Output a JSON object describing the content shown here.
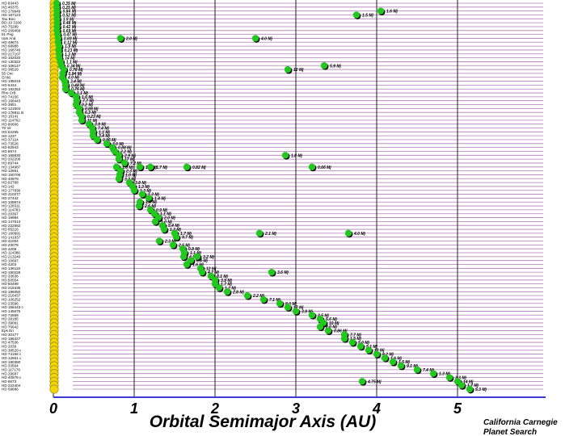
{
  "chart_data": {
    "type": "scatter",
    "xlabel": "Orbital Semimajor Axis  (AU)",
    "xlim": [
      -0.05,
      5.8
    ],
    "x_ticks": [
      0,
      1,
      2,
      3,
      4,
      5
    ],
    "credit": [
      "California Carnegie",
      "Planet Search"
    ],
    "colors": {
      "star": "#f2d40a",
      "star_edge": "#9a8200",
      "planet": "#22c81e",
      "planet_shadow": "#000000",
      "row_line": "#b07ab8",
      "grid": "#222222",
      "axis": "#3a3ad0"
    },
    "stars": [
      "HD 83443",
      "HD 46375",
      "HD 179949",
      "HD 187123",
      "Tau Boo",
      "BD-10 3166",
      "HD 75289",
      "HD 209458",
      "51 Peg",
      "Ups And",
      "HD 49674",
      "HD 68988",
      "HD 168746",
      "HD 217107",
      "HD 162020",
      "HD 130322",
      "HD 108147",
      "HD 38529",
      "55 Cnc",
      "Gl 86",
      "HD 195019",
      "HD 6434",
      "HD 192263",
      "Rho CrB",
      "HD 74156",
      "HD 168443",
      "HD 3651",
      "HD 121504",
      "HD 178911 B",
      "HD 16141",
      "HD 114762",
      "HD 80606",
      "70 Vir",
      "HD 52265",
      "HD 1237",
      "HD 37124",
      "HD 73526",
      "HD 82943",
      "HD 8574",
      "HD 169830",
      "HD 202206",
      "HD 89744",
      "HD 134987",
      "HD 12661",
      "HD 150706",
      "HD 40979",
      "HD 92788",
      "HD 142",
      "HD 177830",
      "HD 210277",
      "HD 27442",
      "HD 108874",
      "HD 128311",
      "HD 114783",
      "HD 20367",
      "HD 19994",
      "HD 147513",
      "HD 222582",
      "HD 65216",
      "HD 160691",
      "HD 141937",
      "HD 41004",
      "HD 23079",
      "HD 4208",
      "HD 114386",
      "HD 213240",
      "HD 10697",
      "HD 4203",
      "HD 136118",
      "HD 190228",
      "HD 33636",
      "HD 50554",
      "HD 50499",
      "HD 216435",
      "HD 196050",
      "HD 216437",
      "HD 106252",
      "HD 23596",
      "HD 168443 c",
      "HD 145675",
      "HD 72659",
      "HD 28185",
      "HD 39091",
      "HD 70642",
      "Eps Eri",
      "HD 30177",
      "HD 186427",
      "HD 47536",
      "HD 2039",
      "HD 38529 c",
      "HD 74156 c",
      "HD 12661 c",
      "HD 190360",
      "HD 33564",
      "HD 117176",
      "HD 29587",
      "HD 40979 c",
      "HD 8673",
      "HD 222404",
      "HD 59686"
    ],
    "inner_planets": [
      {
        "star": "HD 83443",
        "a": 0.04,
        "mass": "0.35 Mj"
      },
      {
        "star": "HD 46375",
        "a": 0.041,
        "mass": "0.25 Mj"
      },
      {
        "star": "HD 179949",
        "a": 0.045,
        "mass": "0.84 Mj"
      },
      {
        "star": "HD 187123",
        "a": 0.042,
        "mass": "0.52 Mj"
      },
      {
        "star": "Tau Boo",
        "a": 0.046,
        "mass": "3.9 Mj"
      },
      {
        "star": "BD-10 3166",
        "a": 0.046,
        "mass": "0.48 Mj"
      },
      {
        "star": "HD 75289",
        "a": 0.046,
        "mass": "0.42 Mj"
      },
      {
        "star": "HD 209458",
        "a": 0.045,
        "mass": "0.69 Mj"
      },
      {
        "star": "51 Peg",
        "a": 0.052,
        "mass": "0.47 Mj"
      },
      {
        "star": "Ups And",
        "a": 0.059,
        "mass": "0.69 Mj"
      },
      {
        "star": "HD 49674",
        "a": 0.058,
        "mass": "0.12 Mj"
      },
      {
        "star": "HD 68988",
        "a": 0.071,
        "mass": "1.9 Mj"
      },
      {
        "star": "HD 168746",
        "a": 0.065,
        "mass": "0.23 Mj"
      },
      {
        "star": "HD 217107",
        "a": 0.07,
        "mass": "1.3 Mj"
      },
      {
        "star": "HD 162020",
        "a": 0.072,
        "mass": "14 Mj"
      },
      {
        "star": "HD 130322",
        "a": 0.088,
        "mass": "1.1 Mj"
      },
      {
        "star": "HD 108147",
        "a": 0.098,
        "mass": "0.34 Mj"
      },
      {
        "star": "HD 38529",
        "a": 0.129,
        "mass": "0.78 Mj"
      },
      {
        "star": "55 Cnc",
        "a": 0.115,
        "mass": "0.84 Mj"
      },
      {
        "star": "Gl 86",
        "a": 0.11,
        "mass": "4.0 Mj"
      },
      {
        "star": "HD 195019",
        "a": 0.14,
        "mass": "3.4 Mj"
      },
      {
        "star": "HD 6434",
        "a": 0.15,
        "mass": "0.48 Mj"
      },
      {
        "star": "HD 192263",
        "a": 0.15,
        "mass": "0.76 Mj"
      },
      {
        "star": "Rho CrB",
        "a": 0.22,
        "mass": "1.1 Mj"
      },
      {
        "star": "HD 74156",
        "a": 0.28,
        "mass": "1.6 Mj"
      },
      {
        "star": "HD 168443",
        "a": 0.29,
        "mass": "7.7 Mj"
      },
      {
        "star": "HD 3651",
        "a": 0.28,
        "mass": "0.2 Mj"
      },
      {
        "star": "HD 121504",
        "a": 0.32,
        "mass": "0.89 Mj"
      },
      {
        "star": "HD 178911 B",
        "a": 0.32,
        "mass": "6.3 Mj"
      },
      {
        "star": "HD 16141",
        "a": 0.35,
        "mass": "0.23 Mj"
      },
      {
        "star": "HD 114762",
        "a": 0.35,
        "mass": "11 Mj"
      },
      {
        "star": "HD 80606",
        "a": 0.44,
        "mass": "3.9 Mj"
      },
      {
        "star": "70 Vir",
        "a": 0.48,
        "mass": "7.4 Mj"
      },
      {
        "star": "HD 52265",
        "a": 0.49,
        "mass": "1.1 Mj"
      },
      {
        "star": "HD 1237",
        "a": 0.49,
        "mass": "3.4 Mj"
      },
      {
        "star": "HD 37124",
        "a": 0.54,
        "mass": "0.86 Mj"
      },
      {
        "star": "HD 73526",
        "a": 0.66,
        "mass": "3.0 Mj"
      },
      {
        "star": "HD 82943",
        "a": 0.73,
        "mass": "0.88 Mj"
      },
      {
        "star": "HD 8574",
        "a": 0.76,
        "mass": "2.2 Mj"
      },
      {
        "star": "HD 169830",
        "a": 0.81,
        "mass": "2.9 Mj"
      },
      {
        "star": "HD 202206",
        "a": 0.81,
        "mass": "17 Mj"
      },
      {
        "star": "HD 89744",
        "a": 0.88,
        "mass": "7.2 Mj"
      },
      {
        "star": "HD 134987",
        "a": 0.78,
        "mass": "1.6 Mj"
      },
      {
        "star": "HD 12661",
        "a": 0.83,
        "mass": "2.3 Mj"
      },
      {
        "star": "HD 150706",
        "a": 0.82,
        "mass": "1.0 Mj"
      },
      {
        "star": "HD 40979",
        "a": 0.81,
        "mass": "3.3 Mj"
      },
      {
        "star": "HD 92788",
        "a": 0.94,
        "mass": "3.8 Mj"
      },
      {
        "star": "HD 142",
        "a": 0.98,
        "mass": "1.3 Mj"
      },
      {
        "star": "HD 177830",
        "a": 1.0,
        "mass": "1.3 Mj"
      },
      {
        "star": "HD 210277",
        "a": 1.1,
        "mass": "1.3 Mj"
      },
      {
        "star": "HD 27442",
        "a": 1.18,
        "mass": "1.4 Mj"
      },
      {
        "star": "HD 108874",
        "a": 1.07,
        "mass": "1.6 Mj"
      },
      {
        "star": "HD 128311",
        "a": 1.06,
        "mass": "2.6 Mj"
      },
      {
        "star": "HD 114783",
        "a": 1.2,
        "mass": "0.9 Mj"
      },
      {
        "star": "HD 20367",
        "a": 1.25,
        "mass": "1.1 Mj"
      },
      {
        "star": "HD 19994",
        "a": 1.3,
        "mass": "2.0 Mj"
      },
      {
        "star": "HD 147513",
        "a": 1.26,
        "mass": "1.0 Mj"
      },
      {
        "star": "HD 222582",
        "a": 1.35,
        "mass": "5.4 Mj"
      },
      {
        "star": "HD 65216",
        "a": 1.37,
        "mass": "1.2 Mj"
      },
      {
        "star": "HD 160691",
        "a": 1.5,
        "mass": "1.7 Mj"
      },
      {
        "star": "HD 141937",
        "a": 1.52,
        "mass": "9.7 Mj"
      },
      {
        "star": "HD 41004",
        "a": 1.31,
        "mass": "2.3 Mj"
      },
      {
        "star": "HD 23079",
        "a": 1.48,
        "mass": "2.5 Mj"
      },
      {
        "star": "HD 4208",
        "a": 1.6,
        "mass": "0.8 Mj"
      },
      {
        "star": "HD 114386",
        "a": 1.62,
        "mass": "1.1 Mj"
      },
      {
        "star": "HD 213240",
        "a": 1.61,
        "mass": "4.5 Mj"
      },
      {
        "star": "HD 10697",
        "a": 1.7,
        "mass": "6.4 Mj"
      },
      {
        "star": "HD 4203",
        "a": 1.65,
        "mass": "1.6 Mj"
      },
      {
        "star": "HD 136118",
        "a": 1.82,
        "mass": "12 Mj"
      },
      {
        "star": "HD 190228",
        "a": 1.84,
        "mass": "4.7 Mj"
      },
      {
        "star": "HD 33636",
        "a": 1.95,
        "mass": "8.1 Mj"
      },
      {
        "star": "HD 50554",
        "a": 2.0,
        "mass": "3.9 Mj"
      },
      {
        "star": "HD 50499",
        "a": 2.0,
        "mass": "1.7 Mj"
      },
      {
        "star": "HD 216435",
        "a": 2.05,
        "mass": "1.2 Mj"
      },
      {
        "star": "HD 196050",
        "a": 2.15,
        "mass": "2.8 Mj"
      },
      {
        "star": "HD 216437",
        "a": 2.4,
        "mass": "2.2 Mj"
      },
      {
        "star": "HD 106252",
        "a": 2.6,
        "mass": "7.1 Mj"
      },
      {
        "star": "HD 23596",
        "a": 2.8,
        "mass": "8.0 Mj"
      },
      {
        "star": "HD 168443 c",
        "a": 2.9,
        "mass": "17 Mj"
      },
      {
        "star": "HD 145675",
        "a": 3.0,
        "mass": "3.9 Mj"
      },
      {
        "star": "HD 72659",
        "a": 3.2,
        "mass": "2.5 Mj"
      },
      {
        "star": "HD 28185",
        "a": 3.3,
        "mass": "5.6 Mj"
      },
      {
        "star": "HD 39091",
        "a": 3.34,
        "mass": "10 Mj"
      },
      {
        "star": "HD 70642",
        "a": 3.3,
        "mass": "2.0 Mj"
      },
      {
        "star": "Eps Eri",
        "a": 3.4,
        "mass": "0.86 Mj"
      },
      {
        "star": "HD 30177",
        "a": 3.6,
        "mass": "7.7 Mj"
      },
      {
        "star": "HD 186427",
        "a": 3.6,
        "mass": "1.5 Mj"
      },
      {
        "star": "HD 47536",
        "a": 3.7,
        "mass": "5.0 Mj"
      },
      {
        "star": "HD 2039",
        "a": 3.8,
        "mass": "5.1 Mj"
      },
      {
        "star": "HD 38529 c",
        "a": 3.9,
        "mass": "12 Mj"
      },
      {
        "star": "HD 74156 c",
        "a": 4.0,
        "mass": "8.2 Mj"
      },
      {
        "star": "HD 12661 c",
        "a": 4.1,
        "mass": "1.6 Mj"
      },
      {
        "star": "HD 190360",
        "a": 4.2,
        "mass": "1.5 Mj"
      },
      {
        "star": "HD 33564",
        "a": 4.3,
        "mass": "9.1 Mj"
      },
      {
        "star": "HD 117176",
        "a": 4.5,
        "mass": "7.4 Mj"
      },
      {
        "star": "HD 29587",
        "a": 4.7,
        "mass": "1.3 Mj"
      },
      {
        "star": "HD 40979 c",
        "a": 4.9,
        "mass": "3.3 Mj"
      },
      {
        "star": "HD 8673",
        "a": 5.0,
        "mass": "14 Mj"
      },
      {
        "star": "HD 222404",
        "a": 5.05,
        "mass": "1.7 Mj"
      },
      {
        "star": "HD 59686",
        "a": 5.15,
        "mass": "5.3 Mj"
      }
    ],
    "outer_planets": [
      {
        "star": "HD 179949",
        "a": 4.05,
        "mass": "1.6 Mj"
      },
      {
        "star": "HD 187123",
        "a": 3.75,
        "mass": "1.5 Mj"
      },
      {
        "star": "HD 108147",
        "a": 3.35,
        "mass": "5.9 Mj"
      },
      {
        "star": "HD 38529",
        "a": 2.9,
        "mass": "12 Mj"
      },
      {
        "star": "Ups And",
        "a": 0.83,
        "mass": "2.0 Mj"
      },
      {
        "star": "Ups And",
        "a": 2.5,
        "mass": "4.0 Mj"
      },
      {
        "star": "HD 134987",
        "a": 1.07,
        "mass": "1.3 Mj"
      },
      {
        "star": "HD 134987",
        "a": 1.2,
        "mass": "1.7 Mj"
      },
      {
        "star": "HD 134987",
        "a": 1.65,
        "mass": "0.82 Mj"
      },
      {
        "star": "HD 134987",
        "a": 3.2,
        "mass": "0.66 Mj"
      },
      {
        "star": "HD 160691",
        "a": 3.65,
        "mass": "4.0 Mj"
      },
      {
        "star": "HD 160691",
        "a": 2.55,
        "mass": "2.1 Mj"
      },
      {
        "star": "HD 169830",
        "a": 2.87,
        "mass": "1.8 Mj"
      },
      {
        "star": "HD 190228",
        "a": 2.7,
        "mass": "3.6 Mj"
      },
      {
        "star": "HD 213240",
        "a": 1.78,
        "mass": "3.2 Mj"
      },
      {
        "star": "HD 8673",
        "a": 3.82,
        "mass": "4.75 Mj"
      }
    ]
  }
}
